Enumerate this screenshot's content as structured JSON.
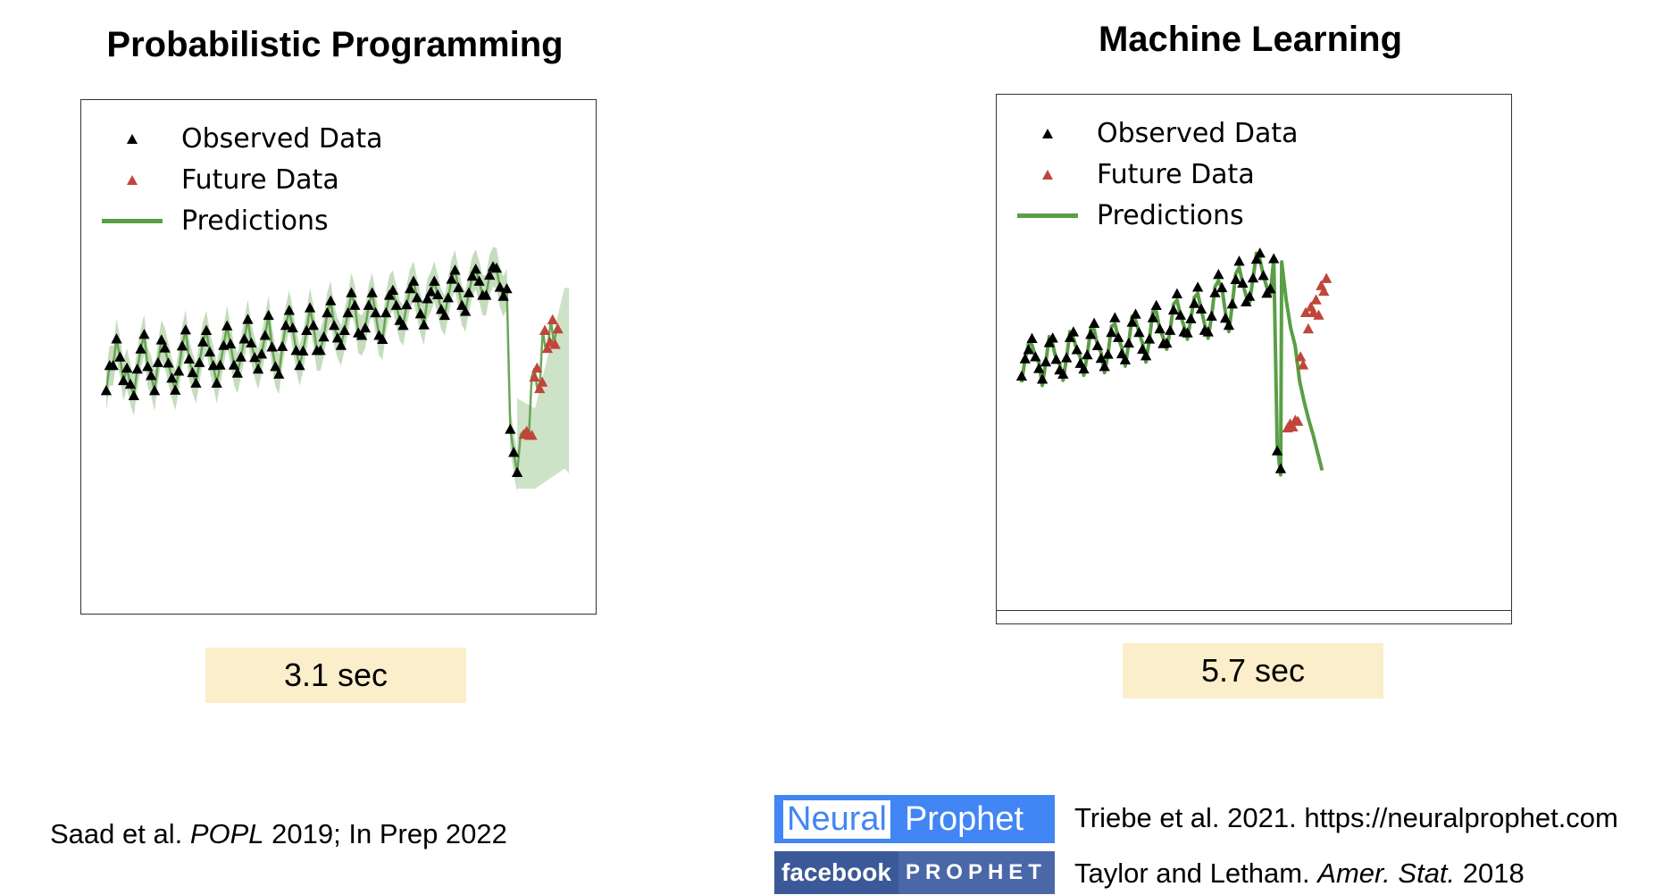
{
  "chart_data": [
    {
      "type": "scatter",
      "title": "Probabilistic Programming",
      "legend": [
        {
          "label": "Observed Data",
          "marker": "triangle",
          "color": "#000000"
        },
        {
          "label": "Future Data",
          "marker": "triangle",
          "color": "#c0463b"
        },
        {
          "label": "Predictions",
          "marker": "line",
          "color": "#5a9e45"
        }
      ],
      "legend_position": "top-left",
      "grid": false,
      "xlim": [
        0,
        134
      ],
      "ylim": [
        0,
        100
      ],
      "observed_y": [
        43.5,
        48.5,
        48.5,
        53.8,
        50.2,
        45.5,
        48,
        44.8,
        42.5,
        47.8,
        51.8,
        54.7,
        48.3,
        46.5,
        43.5,
        49.1,
        53.6,
        52,
        49,
        46,
        43.6,
        47.4,
        52.4,
        55.6,
        49.8,
        47.1,
        45,
        49.1,
        53.2,
        55.5,
        51.2,
        48.5,
        45,
        48.6,
        52.5,
        56.4,
        52.8,
        48.6,
        47,
        50.2,
        53.8,
        57.7,
        53,
        50.1,
        47.8,
        50.8,
        54.5,
        58.5,
        52.2,
        48.3,
        46.8,
        52.3,
        56.5,
        59.5,
        56,
        51.5,
        48.5,
        51.4,
        55.5,
        60,
        56.5,
        51.5,
        51.5,
        54.2,
        59,
        61.4,
        56.5,
        54,
        52.5,
        55.5,
        59,
        63,
        60.5,
        55,
        54.5,
        56,
        60.5,
        63,
        59,
        54.5,
        53.7,
        59,
        62.5,
        63.5,
        60.5,
        57.5,
        56.5,
        60.6,
        63.8,
        65.3,
        62,
        58.8,
        56.6,
        61.8,
        63.2,
        65.3,
        62.6,
        59.7,
        58.5,
        62,
        65.7,
        67.5,
        64,
        60.5,
        59.3,
        63,
        66.3,
        67.7,
        65.3,
        62.5,
        62.5,
        66.5,
        68.2,
        67.9,
        64.1,
        62.3,
        63.8,
        35.8,
        31.2,
        27.2
      ],
      "future_y": [
        34.8,
        35.4,
        34.6,
        34.6,
        46.2,
        48,
        43.9,
        45.2,
        55.5,
        51.9,
        53.2,
        57.6,
        52.7,
        55.8
      ]
    },
    {
      "type": "scatter",
      "title": "Machine Learning",
      "legend": [
        {
          "label": "Observed Data",
          "marker": "triangle",
          "color": "#000000"
        },
        {
          "label": "Future Data",
          "marker": "triangle",
          "color": "#c0463b"
        },
        {
          "label": "Predictions",
          "marker": "line",
          "color": "#5a9e45"
        }
      ],
      "legend_position": "top-left",
      "grid": false,
      "xlim": [
        0,
        134
      ],
      "ylim": [
        0,
        100
      ],
      "observed_y": [
        46,
        49.4,
        51.2,
        53.4,
        49.8,
        47.5,
        45.4,
        48.8,
        52.6,
        53.5,
        49.3,
        47.2,
        46.4,
        49.6,
        53.6,
        54.7,
        51.2,
        48.5,
        47.4,
        50.2,
        54.2,
        56.4,
        52,
        49.5,
        47.9,
        50.3,
        54.6,
        57.5,
        53.6,
        50.4,
        49.2,
        52.5,
        56.6,
        58.2,
        54.6,
        51.3,
        50,
        53.3,
        57.5,
        59.9,
        55.3,
        52.4,
        52.5,
        55,
        59,
        62.2,
        58,
        54.7,
        54.5,
        57.3,
        60.3,
        63.5,
        59.2,
        55,
        54.7,
        57.8,
        62.4,
        66,
        63.4,
        57.4,
        56,
        60.2,
        65,
        68.6,
        64.3,
        60.6,
        61.7,
        65.3,
        69,
        70.2,
        65.8,
        62.3,
        63.2,
        69.1,
        31.3,
        27.8
      ],
      "future_y": [
        35.8,
        36.6,
        36,
        37.3,
        37.1,
        49.8,
        48.2,
        58.5,
        55.3,
        59.6,
        58.5,
        61,
        58,
        63.8,
        62.7,
        65.2
      ]
    }
  ],
  "badges": {
    "left": "3.1 sec",
    "right": "5.7 sec"
  },
  "citations": {
    "left_prefix": "Saad et al. ",
    "left_venue": "POPL",
    "left_suffix": " 2019; In Prep 2022",
    "np_text": "Triebe et al. 2021. https://neuralprophet.com",
    "fb_prefix": "Taylor and Letham. ",
    "fb_venue": "Amer. Stat.",
    "fb_suffix": " 2018"
  },
  "logos": {
    "np_a": "Neural",
    "np_b": "Prophet",
    "fb_a": "facebook",
    "fb_b": "PROPHET"
  }
}
